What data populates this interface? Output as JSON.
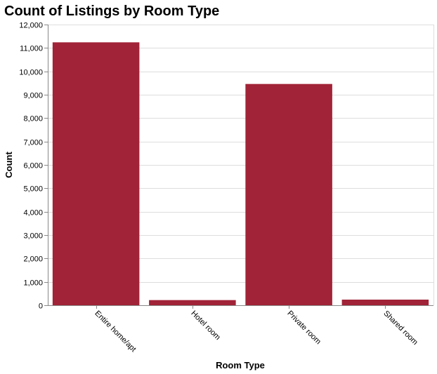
{
  "chart_data": {
    "type": "bar",
    "title": "Count of Listings by Room Type",
    "xlabel": "Room Type",
    "ylabel": "Count",
    "categories": [
      "Entire home/apt",
      "Hotel room",
      "Private room",
      "Shared room"
    ],
    "values": [
      11240,
      220,
      9460,
      240
    ],
    "ylim": [
      0,
      12000
    ],
    "yticks": [
      0,
      1000,
      2000,
      3000,
      4000,
      5000,
      6000,
      7000,
      8000,
      9000,
      10000,
      11000,
      12000
    ],
    "ytick_labels": [
      "0",
      "1,000",
      "2,000",
      "3,000",
      "4,000",
      "5,000",
      "6,000",
      "7,000",
      "8,000",
      "9,000",
      "10,000",
      "11,000",
      "12,000"
    ],
    "grid": true,
    "bar_color": "#a12337"
  }
}
